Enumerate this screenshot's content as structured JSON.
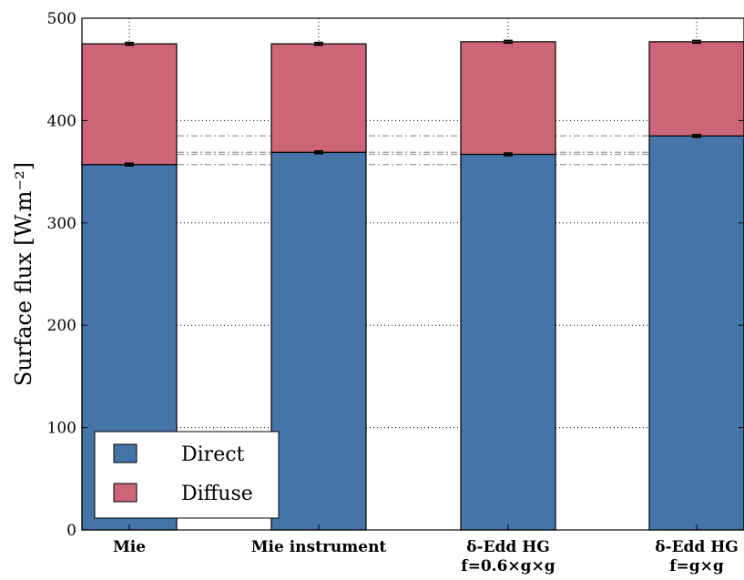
{
  "chart_data": {
    "type": "bar",
    "stacked": true,
    "categories": [
      "Mie",
      "Mie instrument",
      "δ-Edd HG f=0.6×g×g",
      "δ-Edd HG f=g×g"
    ],
    "category_lines": [
      [
        "Mie"
      ],
      [
        "Mie instrument"
      ],
      [
        "δ-Edd HG",
        "f=0.6×g×g"
      ],
      [
        "δ-Edd HG",
        "f=g×g"
      ]
    ],
    "series": [
      {
        "name": "Direct",
        "color": "#4575a8",
        "values": [
          357,
          369,
          367,
          385
        ],
        "errors": [
          1,
          1,
          1,
          1
        ]
      },
      {
        "name": "Diffuse",
        "color": "#cc6677",
        "values": [
          118,
          106,
          110,
          92
        ],
        "errors": [
          1,
          1,
          1,
          1
        ]
      }
    ],
    "totals": [
      475,
      475,
      477,
      477
    ],
    "xlabel": "",
    "ylabel": "Surface flux [W.m⁻²]",
    "ylim": [
      0,
      500
    ],
    "yticks": [
      0,
      100,
      200,
      300,
      400,
      500
    ],
    "grid": "y-dotted",
    "reference_lines": [
      357,
      367,
      369,
      385
    ],
    "legend_position": "bottom-left"
  }
}
